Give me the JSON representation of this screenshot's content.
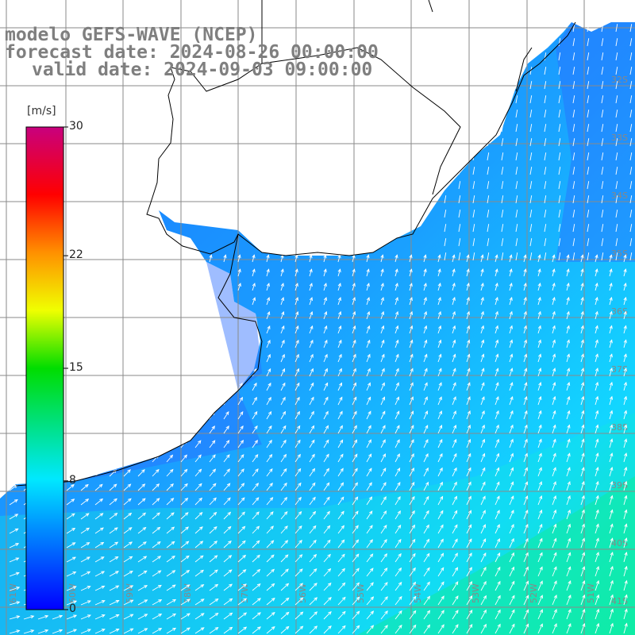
{
  "title": {
    "line1": "modelo GEFS-WAVE (NCEP)",
    "line2": "forecast date: 2024-08-26 00:00:00",
    "line3": "valid date: 2024-09-03 09:00:00"
  },
  "colorbar": {
    "unit": "[m/s]",
    "min": 0,
    "max": 30,
    "ticks": [
      {
        "label": "30",
        "value": 30
      },
      {
        "label": "22",
        "value": 22
      },
      {
        "label": "15",
        "value": 15
      },
      {
        "label": "8",
        "value": 8
      },
      {
        "label": "0",
        "value": 0
      }
    ],
    "colors": [
      "#0000ff",
      "#00c8ff",
      "#00ff00",
      "#ffff00",
      "#ff8000",
      "#ff0000",
      "#c80080"
    ]
  },
  "map": {
    "ocean_color": "#1e88ff",
    "land_color": "#ffffff",
    "grid_color": "#8a8a8a",
    "coast_color": "#000000",
    "lon_labels": [
      "61W",
      "60W",
      "59W",
      "58W",
      "57W",
      "56W",
      "55W",
      "54W",
      "53W",
      "52W",
      "51W"
    ],
    "lat_labels": [
      "32S",
      "33S",
      "34S",
      "35S",
      "36S",
      "37S",
      "38S",
      "39S",
      "40S",
      "41S"
    ]
  }
}
